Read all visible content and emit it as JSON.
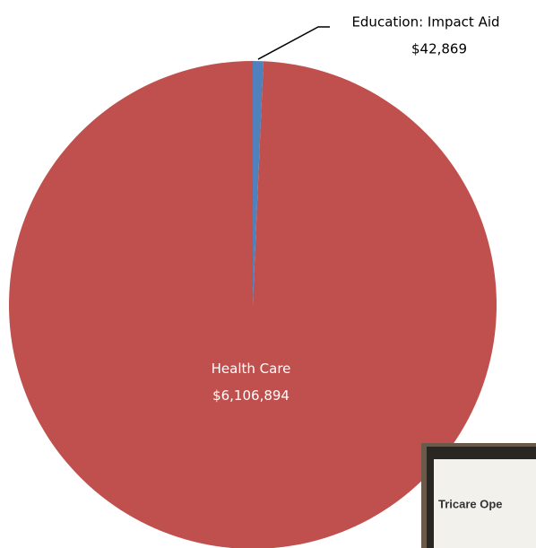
{
  "chart_data": {
    "type": "pie",
    "categories": [
      "Education:  Impact Aid",
      "Health Care"
    ],
    "values": [
      42869,
      6106894
    ],
    "value_labels": [
      "$42,869",
      "$6,106,894"
    ],
    "colors": [
      "#4f81bd",
      "#c0504d"
    ],
    "label_colors": [
      "#000000",
      "#ffffff"
    ]
  },
  "inset_photo": {
    "text": "Tricare Ope"
  }
}
